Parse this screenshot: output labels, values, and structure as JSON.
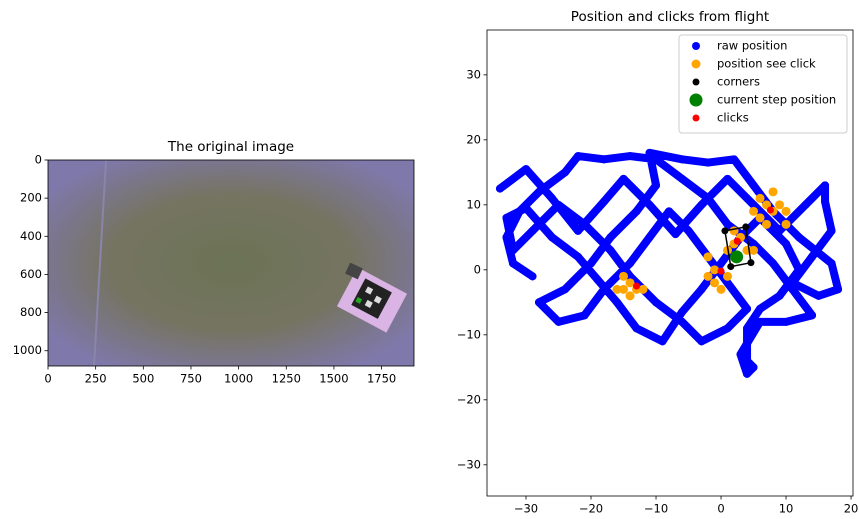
{
  "chart_data": [
    {
      "type": "image",
      "title": "The original image",
      "xlim": [
        0,
        1920
      ],
      "ylim": [
        1080,
        0
      ],
      "xticks": [
        0,
        250,
        500,
        750,
        1000,
        1250,
        1500,
        1750
      ],
      "yticks": [
        0,
        200,
        400,
        600,
        800,
        1000
      ]
    },
    {
      "type": "scatter",
      "title": "Position and clicks from flight",
      "xlim": [
        -36,
        20.3
      ],
      "ylim": [
        -34.8,
        36.9
      ],
      "xticks": [
        {
          "value": -30,
          "label": "−30"
        },
        {
          "value": -20,
          "label": "−20"
        },
        {
          "value": -10,
          "label": "−10"
        },
        0,
        10,
        20
      ],
      "yticks": [
        {
          "value": -30,
          "label": "−30"
        },
        {
          "value": -20,
          "label": "−20"
        },
        {
          "value": -10,
          "label": "−10"
        },
        0,
        10,
        20,
        30
      ],
      "legend": "upper right",
      "series": [
        {
          "name": "raw position",
          "color": "#0000ff",
          "size": 4,
          "connect": true,
          "x": [
            -34,
            -30,
            -26,
            -22,
            -18,
            -15,
            -11,
            -7,
            -3,
            1,
            5,
            9,
            13,
            16,
            16,
            17,
            14,
            11,
            15,
            18,
            17,
            12,
            8,
            5,
            2,
            -2,
            -6,
            -11,
            -10,
            -13,
            -17,
            -20,
            -24,
            -28,
            -25,
            -21,
            -18,
            -14,
            -11,
            -8,
            -5,
            -2,
            1,
            4,
            1,
            -3,
            -6,
            -10,
            -14,
            -17,
            -21,
            -25,
            -29,
            -32,
            -33,
            -30,
            -26,
            -22,
            -19,
            -16,
            -13,
            -9,
            -6,
            -3,
            0,
            3,
            6,
            10,
            12,
            9,
            6,
            4,
            4,
            5,
            4,
            3,
            6,
            10,
            14,
            11,
            8,
            5,
            1,
            -2,
            -6,
            -10,
            -14,
            -18,
            -22,
            -24,
            -28,
            -31,
            -33,
            -32,
            -29
          ],
          "y": [
            12.5,
            15.5,
            11,
            6,
            10.5,
            14,
            10,
            5.5,
            10,
            14,
            10,
            6,
            10,
            13,
            10.5,
            6,
            2,
            -2,
            -4,
            -3,
            1,
            5,
            9,
            13,
            17,
            16.5,
            17,
            18,
            13,
            9,
            5,
            1,
            -3,
            -5,
            -8,
            -7,
            -3,
            1,
            5,
            9,
            6,
            2,
            -2,
            -6,
            -9,
            -11,
            -8,
            -5,
            -1,
            3,
            7,
            10,
            6,
            3,
            8,
            9.5,
            5,
            2,
            -1.5,
            -5,
            -9,
            -11,
            -6.5,
            -3,
            1,
            5,
            8,
            4,
            0,
            -4,
            -6,
            -9,
            -14,
            -15,
            -16,
            -13,
            -8,
            -8,
            -7,
            -3,
            1,
            4,
            7,
            11,
            14,
            17,
            17.5,
            17,
            17.5,
            15,
            12,
            9,
            5,
            1,
            -1
          ]
        },
        {
          "name": "position see click",
          "color": "#ffa500",
          "size": 4.5,
          "x": [
            -15,
            -15,
            -14,
            -13,
            -12,
            -16,
            -14,
            -2,
            -1,
            -1,
            -2,
            0,
            1,
            2,
            1,
            3,
            4,
            2,
            5,
            6,
            7,
            8,
            8,
            9,
            10,
            6,
            7,
            5,
            10
          ],
          "y": [
            -1,
            -3,
            -4,
            -3,
            -3,
            -3,
            -2,
            2,
            0,
            -2,
            -1,
            -3,
            -1,
            4,
            3,
            5,
            3,
            6,
            3,
            11,
            10,
            12,
            9,
            10,
            9,
            8,
            7,
            9,
            7
          ]
        },
        {
          "name": "corners",
          "color": "#000000",
          "size": 3.5,
          "closed": true,
          "x": [
            0.6,
            3.8,
            4.6,
            1.5
          ],
          "y": [
            6,
            6.6,
            1.1,
            0.5
          ]
        },
        {
          "name": "current step position",
          "color": "#008000",
          "size": 6.5,
          "x": [
            2.4
          ],
          "y": [
            2
          ]
        },
        {
          "name": "clicks",
          "color": "#ff0000",
          "size": 3.5,
          "x": [
            -13,
            0,
            2.5,
            7.6
          ],
          "y": [
            -2.5,
            -0.2,
            4.4,
            9.2
          ]
        }
      ]
    }
  ]
}
